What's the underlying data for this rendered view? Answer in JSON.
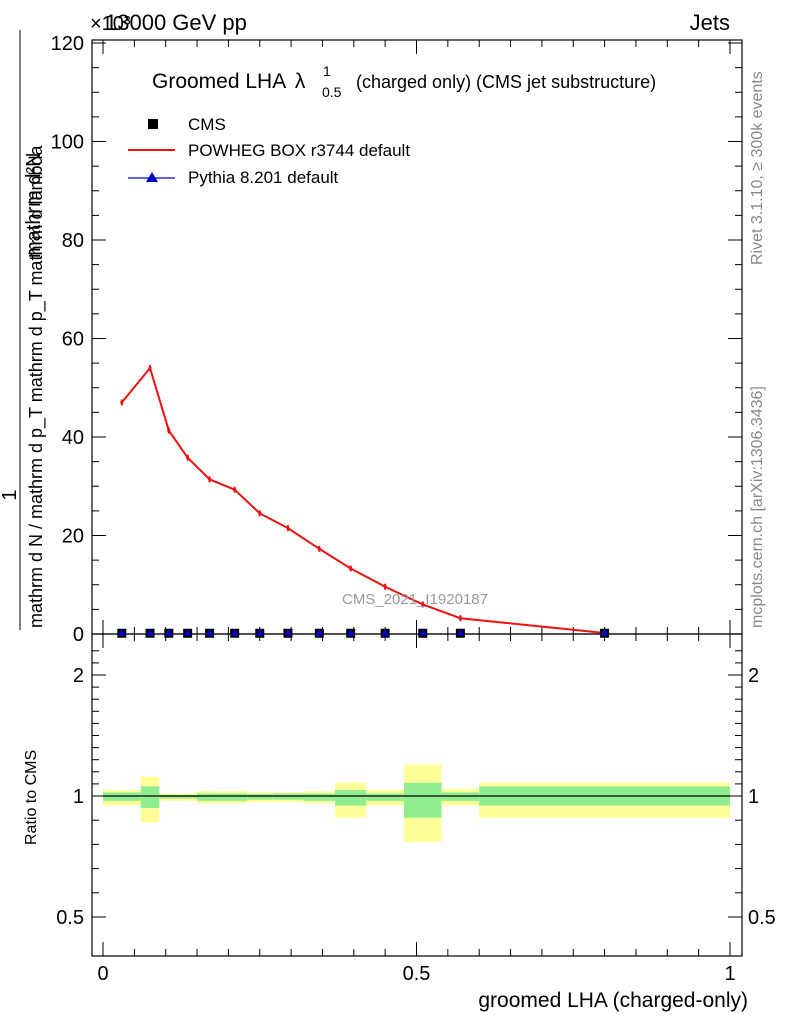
{
  "header": {
    "energy_label": "13000 GeV pp",
    "process_label": "Jets",
    "exponent_label": "×10³"
  },
  "side_labels": {
    "rivet": "Rivet 3.1.10, ≥ 300k events",
    "mcplots": "mcplots.cern.ch [arXiv:1306.3436]"
  },
  "watermark": "CMS_2021_I1920187",
  "main_plot": {
    "title_main": "Groomed LHA",
    "title_lambda": "λ",
    "title_sup": "1",
    "title_sub": "0.5",
    "title_rest": "(charged only) (CMS jet substructure)",
    "ylabel_top": "mathrm d²N",
    "ylabel_one": "1",
    "ylabel_bottom": "mathrm d N / mathrm d p_T mathrm d p_T mathrm d lambda"
  },
  "ratio_plot": {
    "ylabel": "Ratio to CMS"
  },
  "xlabel": "groomed LHA (charged-only)",
  "chart_data": [
    {
      "type": "line",
      "panel": "main",
      "xlim": [
        0,
        1
      ],
      "ylim": [
        0,
        120
      ],
      "y_scale_factor_label": "×10³",
      "x_ticks": [
        0,
        0.5,
        1
      ],
      "x_tick_labels": [
        "0",
        "0.5",
        "1"
      ],
      "y_ticks": [
        0,
        20,
        40,
        60,
        80,
        100,
        120
      ],
      "y_tick_labels": [
        "0",
        "20",
        "40",
        "60",
        "80",
        "100",
        "120"
      ],
      "legend_placement": "top-left",
      "series": [
        {
          "name": "CMS",
          "marker": "square",
          "color": "#000000",
          "x": [
            0.03,
            0.075,
            0.105,
            0.135,
            0.17,
            0.21,
            0.25,
            0.295,
            0.345,
            0.395,
            0.45,
            0.51,
            0.57,
            0.8
          ],
          "y": [
            0.05,
            0.05,
            0.05,
            0.05,
            0.05,
            0.05,
            0.05,
            0.05,
            0.05,
            0.05,
            0.05,
            0.05,
            0.05,
            0.05
          ]
        },
        {
          "name": "POWHEG BOX r3744 default",
          "marker": "line",
          "color": "#ee1111",
          "x": [
            0.03,
            0.075,
            0.105,
            0.135,
            0.17,
            0.21,
            0.25,
            0.295,
            0.345,
            0.395,
            0.45,
            0.51,
            0.57,
            0.8
          ],
          "y": [
            47.0,
            54.0,
            41.3,
            35.8,
            31.4,
            29.3,
            24.5,
            21.5,
            17.3,
            13.3,
            9.6,
            6.0,
            3.2,
            0.2
          ]
        },
        {
          "name": "Pythia 8.201 default",
          "marker": "triangle",
          "color": "#0000cc",
          "x": [
            0.03,
            0.075,
            0.105,
            0.135,
            0.17,
            0.21,
            0.25,
            0.295,
            0.345,
            0.395,
            0.45,
            0.51,
            0.57,
            0.8
          ],
          "y": [
            0.05,
            0.05,
            0.05,
            0.05,
            0.05,
            0.05,
            0.05,
            0.05,
            0.05,
            0.05,
            0.05,
            0.05,
            0.05,
            0.05
          ]
        }
      ]
    },
    {
      "type": "area",
      "panel": "ratio",
      "xlim": [
        0,
        1
      ],
      "ylim": [
        0.35,
        2.3
      ],
      "y_ticks": [
        0.5,
        1,
        2
      ],
      "y_tick_labels": [
        "0.5",
        "1",
        "2"
      ],
      "reference_line": 1,
      "bins": [
        {
          "lo": 0.0,
          "hi": 0.06,
          "inner": [
            0.98,
            1.03
          ],
          "outer": [
            0.96,
            1.05
          ]
        },
        {
          "lo": 0.06,
          "hi": 0.09,
          "inner": [
            0.95,
            1.08
          ],
          "outer": [
            0.89,
            1.16
          ]
        },
        {
          "lo": 0.09,
          "hi": 0.12,
          "inner": [
            0.99,
            1.01
          ],
          "outer": [
            0.98,
            1.02
          ]
        },
        {
          "lo": 0.12,
          "hi": 0.15,
          "inner": [
            0.99,
            1.01
          ],
          "outer": [
            0.98,
            1.02
          ]
        },
        {
          "lo": 0.15,
          "hi": 0.19,
          "inner": [
            0.98,
            1.02
          ],
          "outer": [
            0.97,
            1.04
          ]
        },
        {
          "lo": 0.19,
          "hi": 0.23,
          "inner": [
            0.98,
            1.02
          ],
          "outer": [
            0.97,
            1.04
          ]
        },
        {
          "lo": 0.23,
          "hi": 0.27,
          "inner": [
            0.985,
            1.015
          ],
          "outer": [
            0.975,
            1.03
          ]
        },
        {
          "lo": 0.27,
          "hi": 0.32,
          "inner": [
            0.985,
            1.02
          ],
          "outer": [
            0.975,
            1.03
          ]
        },
        {
          "lo": 0.32,
          "hi": 0.37,
          "inner": [
            0.98,
            1.02
          ],
          "outer": [
            0.97,
            1.04
          ]
        },
        {
          "lo": 0.37,
          "hi": 0.42,
          "inner": [
            0.96,
            1.05
          ],
          "outer": [
            0.91,
            1.11
          ]
        },
        {
          "lo": 0.42,
          "hi": 0.48,
          "inner": [
            0.98,
            1.02
          ],
          "outer": [
            0.96,
            1.05
          ]
        },
        {
          "lo": 0.48,
          "hi": 0.54,
          "inner": [
            0.91,
            1.11
          ],
          "outer": [
            0.81,
            1.26
          ]
        },
        {
          "lo": 0.54,
          "hi": 0.6,
          "inner": [
            0.98,
            1.03
          ],
          "outer": [
            0.96,
            1.06
          ]
        },
        {
          "lo": 0.6,
          "hi": 1.0,
          "inner": [
            0.96,
            1.08
          ],
          "outer": [
            0.91,
            1.11
          ]
        }
      ],
      "inner_band_color": "#90ee90",
      "outer_band_color": "#ffff99"
    }
  ]
}
